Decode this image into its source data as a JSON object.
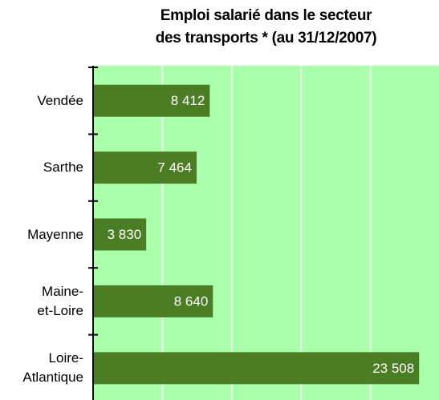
{
  "chart_data": {
    "type": "bar",
    "orientation": "horizontal",
    "title": "Emploi salarié dans le secteur\ndes transports * (au 31/12/2007)",
    "categories": [
      "Vendée",
      "Sarthe",
      "Mayenne",
      "Maine-\net-Loire",
      "Loire-\nAtlantique"
    ],
    "values": [
      8412,
      7464,
      3830,
      8640,
      23508
    ],
    "value_labels": [
      "8 412",
      "7 464",
      "3 830",
      "8 640",
      "23 508"
    ],
    "color": "#4b7d24",
    "background": "#aaffaa",
    "xlim": [
      0,
      25000
    ],
    "xticks": [
      0,
      5000,
      10000,
      15000,
      20000,
      25000
    ],
    "grid": true
  }
}
